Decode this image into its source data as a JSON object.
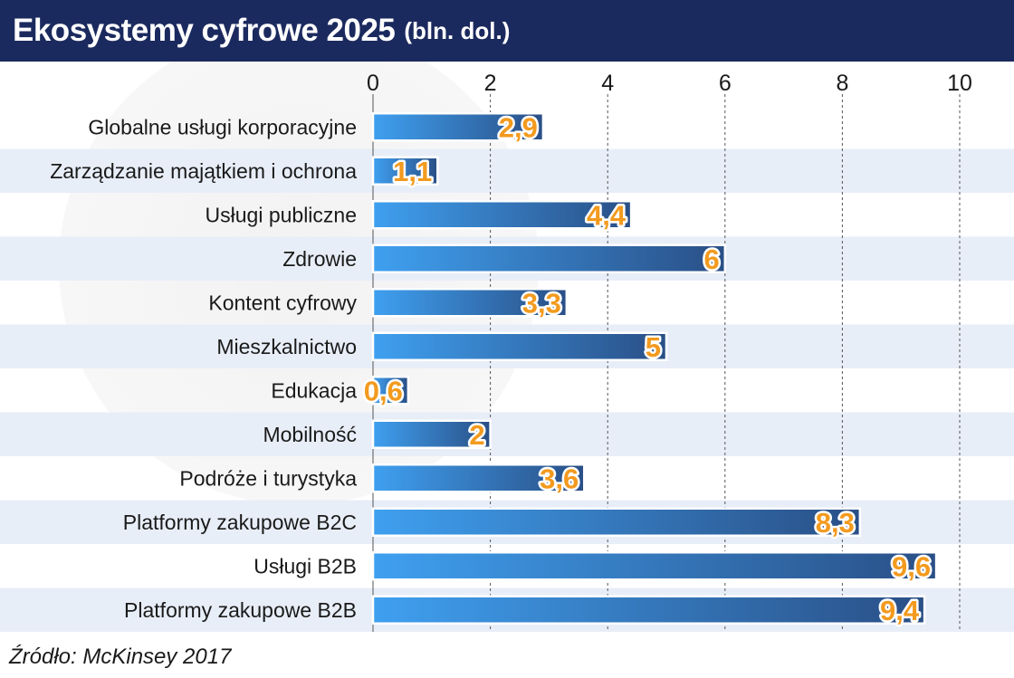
{
  "header": {
    "title": "Ekosystemy cyfrowe 2025",
    "unit": "(bln. dol.)"
  },
  "source": "Źródło: McKinsey 2017",
  "colors": {
    "header_bg": "#1b2a5e",
    "bar_light": "#3fa0f0",
    "bar_dark": "#2a4f86",
    "label_fill": "#f39a1e",
    "stripe": "#e8eef8"
  },
  "chart_data": {
    "type": "bar",
    "orientation": "horizontal",
    "title": "Ekosystemy cyfrowe 2025",
    "subtitle": "(bln. dol.)",
    "categories": [
      "Globalne usługi korporacyjne",
      "Zarządzanie majątkiem i ochrona",
      "Usługi publiczne",
      "Zdrowie",
      "Kontent cyfrowy",
      "Mieszkalnictwo",
      "Edukacja",
      "Mobilność",
      "Podróże i turystyka",
      "Platformy zakupowe B2C",
      "Usługi B2B",
      "Platformy zakupowe B2B"
    ],
    "values": [
      2.9,
      1.1,
      4.4,
      6,
      3.3,
      5,
      0.6,
      2,
      3.6,
      8.3,
      9.6,
      9.4
    ],
    "value_labels": [
      "2,9",
      "1,1",
      "4,4",
      "6",
      "3,3",
      "5",
      "0,6",
      "2",
      "3,6",
      "8,3",
      "9,6",
      "9,4"
    ],
    "xlim": [
      0,
      10
    ],
    "ticks": [
      0,
      2,
      4,
      6,
      8,
      10
    ],
    "tick_labels": [
      "0",
      "2",
      "4",
      "6",
      "8",
      "10"
    ],
    "grid": true,
    "legend": "none"
  }
}
